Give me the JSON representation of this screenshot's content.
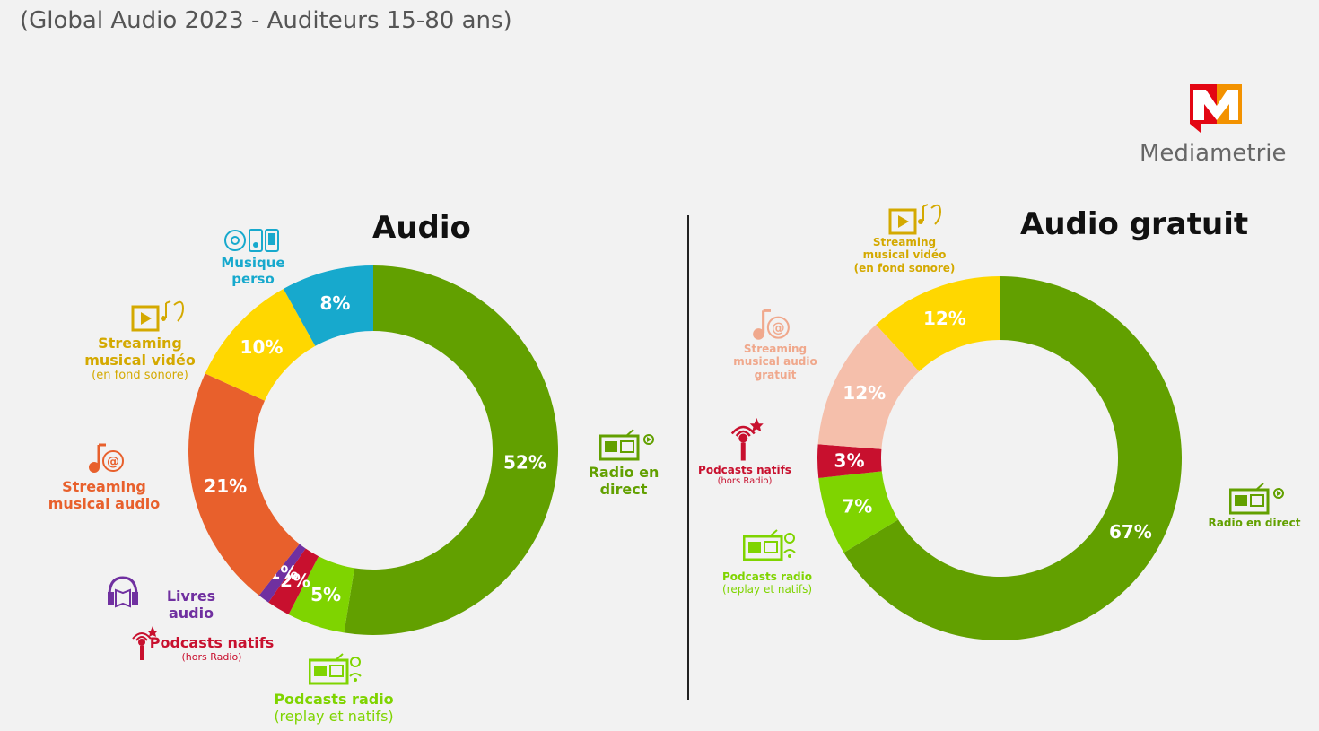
{
  "subtitle": "(Global Audio 2023 - Auditeurs 15-80 ans)",
  "brand": {
    "name": "Mediametrie",
    "logo_letter": "M",
    "logo_colors": [
      "#e30613",
      "#f39200"
    ]
  },
  "chart_data": [
    {
      "type": "pie",
      "title": "Audio",
      "slices": [
        {
          "label": "Radio en direct",
          "value": 52,
          "display": "52%",
          "color": "#62a000",
          "icon": "radio-icon"
        },
        {
          "label": "Podcasts radio",
          "sublabel": "(replay et natifs)",
          "value": 5,
          "display": "5%",
          "color": "#7fd400",
          "icon": "radio-podcast-icon"
        },
        {
          "label": "Podcasts natifs",
          "sublabel": "(hors Radio)",
          "value": 2,
          "display": "2%",
          "color": "#c8102e",
          "icon": "microphone-icon"
        },
        {
          "label": "Livres audio",
          "value": 1,
          "display": "1%",
          "color": "#7030a0",
          "icon": "headphones-book-icon"
        },
        {
          "label": "Streaming musical audio",
          "value": 21,
          "display": "21%",
          "color": "#e8602c",
          "icon": "music-note-at-icon"
        },
        {
          "label": "Streaming musical vidéo",
          "sublabel": "(en fond sonore)",
          "value": 10,
          "display": "10%",
          "color": "#ffd700",
          "icon": "video-play-ear-icon"
        },
        {
          "label": "Musique perso",
          "value": 8,
          "display": "8%",
          "color": "#17a9cd",
          "icon": "cd-mp3-phone-icon"
        }
      ]
    },
    {
      "type": "pie",
      "title": "Audio gratuit",
      "slices": [
        {
          "label": "Radio en direct",
          "value": 67,
          "display": "67%",
          "color": "#62a000",
          "icon": "radio-icon"
        },
        {
          "label": "Podcasts radio",
          "sublabel": "(replay et natifs)",
          "value": 7,
          "display": "7%",
          "color": "#7fd400",
          "icon": "radio-podcast-icon"
        },
        {
          "label": "Podcasts natifs",
          "sublabel": "(hors Radio)",
          "value": 3,
          "display": "3%",
          "color": "#c8102e",
          "icon": "microphone-icon"
        },
        {
          "label": "Streaming musical audio gratuit",
          "value": 12,
          "display": "12%",
          "color": "#f5bfab",
          "icon": "music-note-at-icon"
        },
        {
          "label": "Streaming musical vidéo",
          "sublabel": "(en fond sonore)",
          "value": 12,
          "display": "12%",
          "color": "#ffd700",
          "icon": "video-play-ear-icon"
        }
      ]
    }
  ]
}
